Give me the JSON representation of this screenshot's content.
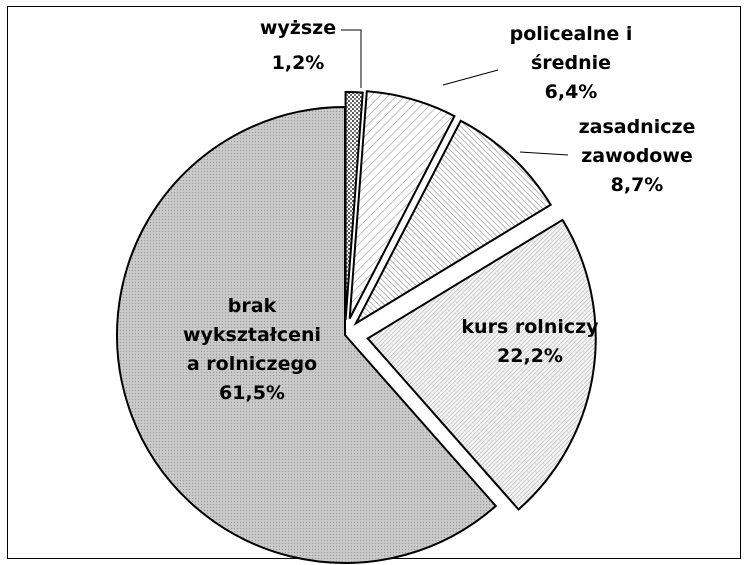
{
  "chart_data": {
    "type": "pie",
    "exploded": true,
    "slices": [
      {
        "label_lines": [
          "wyższe"
        ],
        "value_label": "1,2%",
        "value": 1.2,
        "pattern": "small-dots"
      },
      {
        "label_lines": [
          "policealne i",
          "średnie"
        ],
        "value_label": "6,4%",
        "value": 6.4,
        "pattern": "wide-diagonal"
      },
      {
        "label_lines": [
          "zasadnicze",
          "zawodowe"
        ],
        "value_label": "8,7%",
        "value": 8.7,
        "pattern": "dense-diagonal"
      },
      {
        "label_lines": [
          "kurs rolniczy"
        ],
        "value_label": "22,2%",
        "value": 22.2,
        "pattern": "dense-stripes"
      },
      {
        "label_lines": [
          "brak",
          "wykształceni",
          "a rolniczego"
        ],
        "value_label": "61,5%",
        "value": 61.5,
        "pattern": "fine-dots"
      }
    ]
  }
}
